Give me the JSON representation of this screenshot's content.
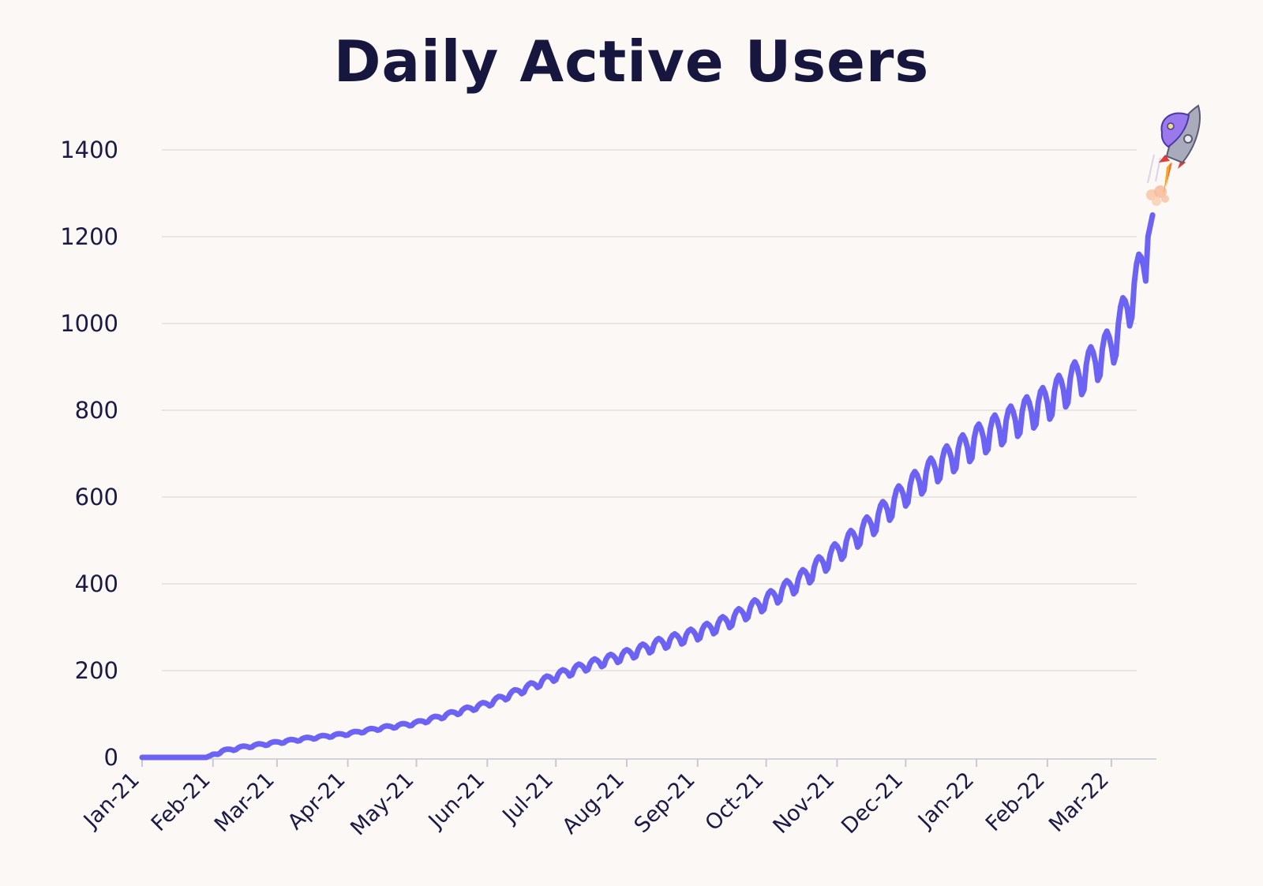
{
  "chart_data": {
    "type": "line",
    "title": "Daily Active Users",
    "xlabel": "",
    "ylabel": "",
    "ylim": [
      0,
      1400
    ],
    "y_ticks": [
      0,
      200,
      400,
      600,
      800,
      1000,
      1200,
      1400
    ],
    "x_ticks": [
      "Jan-21",
      "Feb-21",
      "Mar-21",
      "Apr-21",
      "May-21",
      "Jun-21",
      "Jul-21",
      "Aug-21",
      "Sep-21",
      "Oct-21",
      "Nov-21",
      "Dec-21",
      "Jan-22",
      "Feb-22",
      "Mar-22"
    ],
    "xlim": [
      "2021-01-01",
      "2022-03-20"
    ],
    "grid": "horizontal",
    "legend": "none",
    "series": [
      {
        "color": "#6c63f5",
        "x": [
          "2021-01-01",
          "2021-01-29",
          "2021-02-05",
          "2021-02-15",
          "2021-03-01",
          "2021-03-15",
          "2021-04-01",
          "2021-04-15",
          "2021-05-01",
          "2021-05-15",
          "2021-06-01",
          "2021-06-15",
          "2021-07-01",
          "2021-07-15",
          "2021-08-01",
          "2021-08-15",
          "2021-09-01",
          "2021-09-15",
          "2021-10-01",
          "2021-10-15",
          "2021-11-01",
          "2021-11-15",
          "2021-12-01",
          "2021-12-15",
          "2022-01-01",
          "2022-01-15",
          "2022-02-01",
          "2022-02-15",
          "2022-03-01",
          "2022-03-08",
          "2022-03-15",
          "2022-03-19"
        ],
        "values": [
          0,
          0,
          15,
          25,
          35,
          45,
          55,
          68,
          80,
          100,
          125,
          155,
          190,
          215,
          240,
          265,
          290,
          320,
          365,
          410,
          480,
          540,
          620,
          680,
          740,
          780,
          830,
          890,
          960,
          1050,
          1150,
          1250
        ]
      }
    ],
    "weekly_oscillation": true
  },
  "decoration": {
    "icon": "rocket-icon"
  }
}
